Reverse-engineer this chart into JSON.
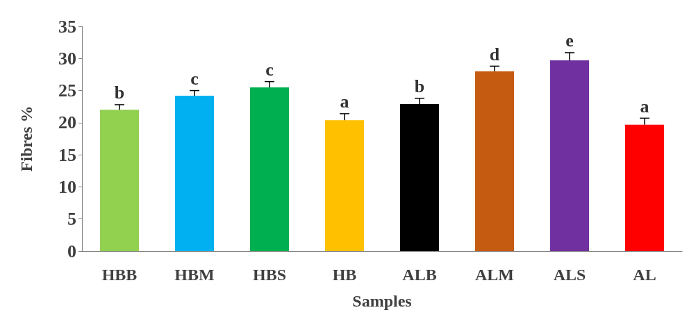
{
  "chart_data": {
    "type": "bar",
    "xlabel": "Samples",
    "ylabel": "Fibres %",
    "categories": [
      "HBB",
      "HBM",
      "HBS",
      "HB",
      "ALB",
      "ALM",
      "ALS",
      "AL"
    ],
    "values": [
      22.0,
      24.2,
      25.5,
      20.4,
      22.9,
      28.0,
      29.7,
      19.7
    ],
    "colors": [
      "#92d050",
      "#00b0f0",
      "#00b050",
      "#ffc000",
      "#000000",
      "#c55a11",
      "#7030a0",
      "#ff0000"
    ],
    "errors": [
      [
        22.0,
        22.8
      ],
      [
        24.2,
        25.0
      ],
      [
        25.5,
        26.4
      ],
      [
        20.4,
        21.4
      ],
      [
        22.9,
        23.8
      ],
      [
        28.0,
        28.8
      ],
      [
        29.7,
        30.9
      ],
      [
        19.7,
        20.7
      ]
    ],
    "ylim": [
      0,
      35
    ],
    "yticks": [
      0,
      5,
      10,
      15,
      20,
      25,
      30,
      35
    ],
    "grid": false,
    "annotations": [
      {
        "text": "b",
        "x": "HBB",
        "y": 22.8
      },
      {
        "text": "c",
        "x": "HBM",
        "y": 25.0
      },
      {
        "text": "c",
        "x": "HBS",
        "y": 26.4
      },
      {
        "text": "a",
        "x": "HB",
        "y": 21.4
      },
      {
        "text": "b",
        "x": "ALB",
        "y": 23.8
      },
      {
        "text": "d",
        "x": "ALM",
        "y": 28.8
      },
      {
        "text": "e",
        "x": "ALS",
        "y": 30.9
      },
      {
        "text": "a",
        "x": "AL",
        "y": 20.7
      }
    ]
  }
}
